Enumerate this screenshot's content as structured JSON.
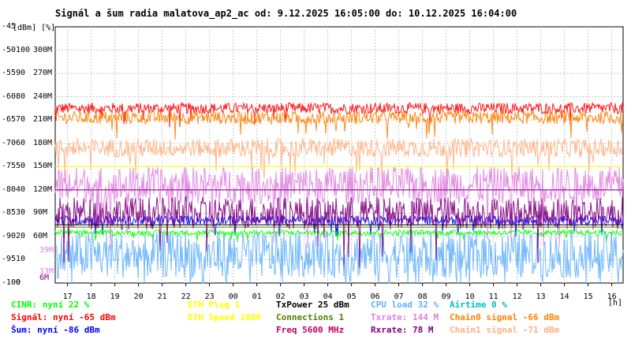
{
  "title": "Signál a šum radia malatova_ap2_ac od: 9.12.2025 16:05:00 do: 10.12.2025 16:04:00",
  "units_label": "[dBm] [%]",
  "x_unit": "[h]",
  "left_axis": [
    {
      "dbm": "-45",
      "pct": "",
      "rate": ""
    },
    {
      "dbm": "-50",
      "pct": "100",
      "rate": "300M"
    },
    {
      "dbm": "-55",
      "pct": "90",
      "rate": "270M"
    },
    {
      "dbm": "-60",
      "pct": "80",
      "rate": "240M"
    },
    {
      "dbm": "-65",
      "pct": "70",
      "rate": "210M"
    },
    {
      "dbm": "-70",
      "pct": "60",
      "rate": "180M"
    },
    {
      "dbm": "-75",
      "pct": "50",
      "rate": "150M"
    },
    {
      "dbm": "-80",
      "pct": "40",
      "rate": "120M"
    },
    {
      "dbm": "-85",
      "pct": "30",
      "rate": "90M"
    },
    {
      "dbm": "-90",
      "pct": "20",
      "rate": "60M"
    },
    {
      "dbm": "-95",
      "pct": "10",
      "rate": ""
    },
    {
      "dbm": "-100",
      "pct": "0",
      "rate": ""
    }
  ],
  "inner_ticks": [
    {
      "text": "39M",
      "color": "#e080e0",
      "dbm": -93.0
    },
    {
      "text": "13M",
      "color": "#e080e0",
      "dbm": -97.7
    },
    {
      "text": "6M",
      "color": "#800080",
      "dbm": -98.9
    }
  ],
  "legend": [
    {
      "text": "CINR: nyní 22 %",
      "color": "#00ff00"
    },
    {
      "text": "Signál: nyní -65 dBm",
      "color": "#ff0000"
    },
    {
      "text": "Šum: nyní -86 dBm",
      "color": "#0000ff"
    },
    {
      "text": "ETH Plug 1",
      "color": "#ffff00"
    },
    {
      "text": "ETH Speed 1000",
      "color": "#ffff00"
    },
    {
      "text": "TxPower 25 dBm",
      "color": "#000000"
    },
    {
      "text": "Connections 1",
      "color": "#508000"
    },
    {
      "text": "Freq 5600 MHz",
      "color": "#c00060"
    },
    {
      "text": "CPU load 32 %",
      "color": "#60b0ff"
    },
    {
      "text": "Txrate: 144 M",
      "color": "#e080e0"
    },
    {
      "text": "Rxrate: 78 M",
      "color": "#800080"
    },
    {
      "text": "Airtime 0 %",
      "color": "#00c0c0"
    },
    {
      "text": "Chain0 signal -66 dBm",
      "color": "#ff8000"
    },
    {
      "text": "Chain1 signal -71 dBm",
      "color": "#ffb080"
    }
  ],
  "chart_data": {
    "type": "line",
    "title": "Signál a šum radia malatova_ap2_ac od: 9.12.2025 16:05:00 do: 10.12.2025 16:04:00",
    "ylabel": "[dBm] [%]",
    "xlabel": "[h]",
    "ylim": [
      -100,
      -45
    ],
    "x_ticks": [
      "17",
      "18",
      "19",
      "20",
      "21",
      "22",
      "23",
      "00",
      "01",
      "02",
      "03",
      "04",
      "05",
      "06",
      "07",
      "08",
      "09",
      "10",
      "11",
      "12",
      "13",
      "14",
      "15",
      "16"
    ],
    "hlines": [
      {
        "name": "Txrate level",
        "color": "#e080e0",
        "dbm": -80
      },
      {
        "name": "Rxrate level",
        "color": "#800080",
        "dbm": -80
      },
      {
        "name": "ETH level",
        "color": "#ffff00",
        "dbm": -75
      },
      {
        "name": "TxPower level",
        "color": "#000000",
        "dbm": -87.5
      },
      {
        "name": "Connections level",
        "color": "#508000",
        "dbm": -88
      }
    ],
    "series": [
      {
        "name": "Signál",
        "color": "#ff0000",
        "mean": -62.5,
        "jitter": 1.2,
        "x": [
          0,
          24
        ],
        "values": [
          -62.5,
          -62.5
        ]
      },
      {
        "name": "Chain0 signal",
        "color": "#ff8000",
        "mean": -64.5,
        "jitter": 1.4,
        "x": [
          0,
          24
        ],
        "values": [
          -64.5,
          -64.5
        ]
      },
      {
        "name": "Chain1 signal",
        "color": "#ffb080",
        "mean": -71,
        "jitter": 2.0,
        "x": [
          0,
          24
        ],
        "values": [
          -71,
          -71
        ]
      },
      {
        "name": "Šum",
        "color": "#0000ff",
        "mean": -86.5,
        "jitter": 1.0,
        "x": [
          0,
          24
        ],
        "values": [
          -86.5,
          -86.5
        ]
      },
      {
        "name": "CINR",
        "color": "#00ff00",
        "mean": -89.2,
        "jitter": 0.6,
        "x": [
          0,
          24
        ],
        "values": [
          -89.2,
          -89.2
        ]
      },
      {
        "name": "CPU load",
        "color": "#60b0ff",
        "mean": -94,
        "jitter": 5.0,
        "x": [
          0,
          24
        ],
        "values": [
          -94,
          -94
        ]
      },
      {
        "name": "Txrate",
        "color": "#e080e0",
        "mean": -79,
        "jitter": 4.0,
        "x": [
          0,
          24
        ],
        "values": [
          -79,
          -79
        ]
      },
      {
        "name": "Rxrate",
        "color": "#800080",
        "mean": -85,
        "jitter": 3.5,
        "x": [
          0,
          24
        ],
        "values": [
          -85,
          -85
        ]
      }
    ]
  }
}
